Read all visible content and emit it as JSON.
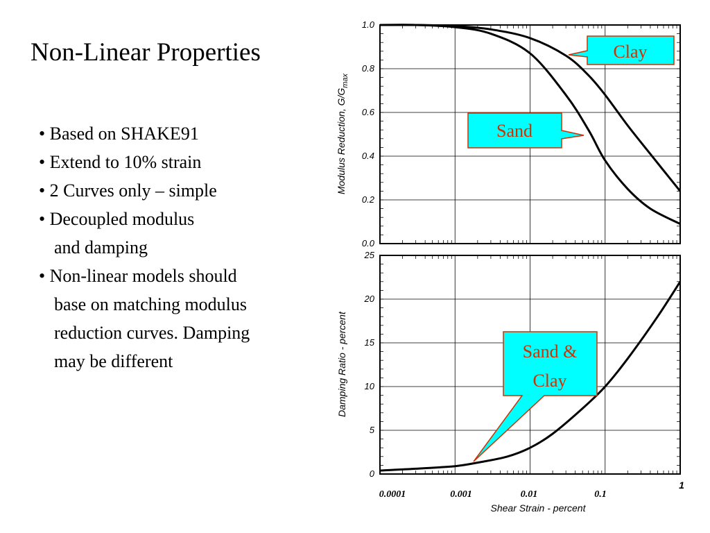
{
  "slide": {
    "title": "Non-Linear Properties",
    "bullets": [
      "• Based on SHAKE91",
      "• Extend to 10% strain",
      "• 2 Curves only – simple",
      "• Decoupled modulus",
      "and  damping",
      "• Non-linear models should",
      "base on matching modulus",
      "reduction curves.  Damping",
      "may be different"
    ]
  },
  "colors": {
    "callout_fill": "#00ffff",
    "callout_text": "#cc3300",
    "curve": "#000000"
  },
  "chart_data": [
    {
      "type": "line",
      "ylabel": "Modulus Reduction, G/G",
      "ylabel_sub": "max",
      "xscale": "log",
      "xlim": [
        0.0001,
        1
      ],
      "ylim": [
        0,
        1
      ],
      "yticks": [
        "0.0",
        "0.2",
        "0.4",
        "0.6",
        "0.8",
        "1.0"
      ],
      "grid": true,
      "series": [
        {
          "name": "Clay",
          "x": [
            0.0001,
            0.0003,
            0.001,
            0.003,
            0.01,
            0.03,
            0.06,
            0.1,
            0.2,
            0.4,
            1.0
          ],
          "values": [
            1.0,
            1.0,
            0.995,
            0.98,
            0.94,
            0.86,
            0.77,
            0.68,
            0.54,
            0.41,
            0.24
          ]
        },
        {
          "name": "Sand",
          "x": [
            0.0001,
            0.0003,
            0.001,
            0.003,
            0.01,
            0.03,
            0.06,
            0.1,
            0.2,
            0.4,
            1.0
          ],
          "values": [
            1.0,
            1.0,
            0.99,
            0.96,
            0.87,
            0.68,
            0.52,
            0.38,
            0.25,
            0.16,
            0.09
          ]
        }
      ],
      "annotations": [
        "Clay",
        "Sand"
      ]
    },
    {
      "type": "line",
      "ylabel": "Damping Ratio - percent",
      "xlabel": "Shear Strain - percent",
      "xscale": "log",
      "xlim": [
        0.0001,
        1
      ],
      "ylim": [
        0,
        25
      ],
      "yticks": [
        "0",
        "5",
        "10",
        "15",
        "20",
        "25"
      ],
      "xticks": [
        "0.0001",
        "0.001",
        "0.01",
        "0.1",
        "1"
      ],
      "grid": true,
      "series": [
        {
          "name": "Sand & Clay",
          "x": [
            0.0001,
            0.0003,
            0.001,
            0.002,
            0.005,
            0.01,
            0.02,
            0.05,
            0.1,
            0.2,
            0.5,
            1.0
          ],
          "values": [
            0.4,
            0.6,
            0.9,
            1.3,
            2.0,
            3.0,
            4.6,
            7.5,
            10.0,
            13.2,
            18.0,
            22.0
          ]
        }
      ],
      "annotations": [
        "Sand &",
        "Clay"
      ]
    }
  ]
}
